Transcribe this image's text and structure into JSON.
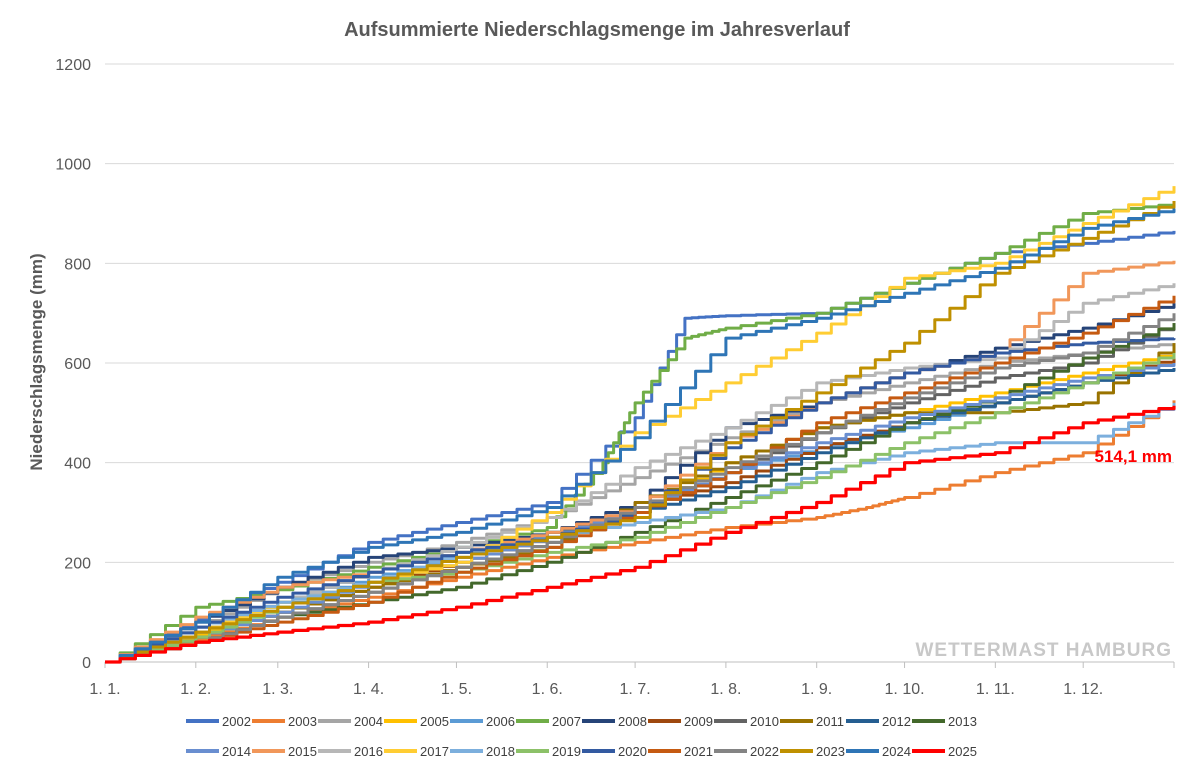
{
  "chart_data": {
    "type": "line",
    "title": "Aufsummierte Niederschlagsmenge im Jahresverlauf",
    "xlabel": "",
    "ylabel": "Niederschlagsmenge (mm)",
    "ylim": [
      0,
      1200
    ],
    "yticks": [
      0,
      200,
      400,
      600,
      800,
      1000,
      1200
    ],
    "x_tick_labels": [
      "1. 1.",
      "1. 2.",
      "1. 3.",
      "1. 4.",
      "1. 5.",
      "1. 6.",
      "1. 7.",
      "1. 8.",
      "1. 9.",
      "1. 10.",
      "1. 11.",
      "1. 12."
    ],
    "x_tick_days": [
      0,
      31,
      59,
      90,
      120,
      151,
      181,
      212,
      243,
      273,
      304,
      334
    ],
    "xlim": [
      0,
      365
    ],
    "grid": "horizontal",
    "legend": "bottom",
    "annotation": "514,1 mm",
    "watermark": "WETTERMAST HAMBURG",
    "series": [
      {
        "name": "2002",
        "color": "#4472c4",
        "x": [
          0,
          31,
          59,
          90,
          120,
          151,
          181,
          198,
          212,
          243,
          273,
          304,
          334,
          365
        ],
        "y": [
          0,
          85,
          160,
          240,
          280,
          320,
          490,
          690,
          695,
          700,
          760,
          820,
          840,
          865
        ]
      },
      {
        "name": "2003",
        "color": "#ed7d31",
        "x": [
          0,
          31,
          59,
          90,
          120,
          151,
          181,
          212,
          243,
          260,
          273,
          304,
          334,
          365
        ],
        "y": [
          0,
          45,
          90,
          130,
          170,
          210,
          240,
          270,
          290,
          310,
          330,
          380,
          420,
          525
        ]
      },
      {
        "name": "2004",
        "color": "#a5a5a5",
        "x": [
          0,
          31,
          59,
          90,
          120,
          151,
          181,
          212,
          243,
          273,
          304,
          334,
          365
        ],
        "y": [
          0,
          70,
          150,
          200,
          240,
          290,
          370,
          450,
          520,
          560,
          600,
          620,
          640
        ]
      },
      {
        "name": "2005",
        "color": "#ffc000",
        "x": [
          0,
          31,
          59,
          90,
          120,
          151,
          181,
          212,
          243,
          273,
          304,
          334,
          365
        ],
        "y": [
          0,
          55,
          110,
          160,
          210,
          260,
          300,
          400,
          470,
          500,
          540,
          580,
          620
        ]
      },
      {
        "name": "2006",
        "color": "#5b9bd5",
        "x": [
          0,
          31,
          59,
          90,
          120,
          151,
          181,
          212,
          243,
          273,
          304,
          334,
          365
        ],
        "y": [
          0,
          60,
          110,
          170,
          210,
          260,
          310,
          380,
          430,
          470,
          520,
          560,
          620
        ]
      },
      {
        "name": "2007",
        "color": "#70ad47",
        "x": [
          0,
          31,
          59,
          90,
          120,
          151,
          170,
          181,
          198,
          212,
          243,
          273,
          304,
          334,
          365
        ],
        "y": [
          0,
          110,
          145,
          190,
          230,
          270,
          400,
          520,
          650,
          670,
          700,
          760,
          820,
          900,
          920
        ]
      },
      {
        "name": "2008",
        "color": "#264478",
        "x": [
          0,
          31,
          59,
          90,
          120,
          151,
          181,
          212,
          243,
          273,
          304,
          334,
          365
        ],
        "y": [
          0,
          80,
          150,
          210,
          230,
          260,
          320,
          470,
          520,
          580,
          630,
          670,
          720
        ]
      },
      {
        "name": "2009",
        "color": "#9e480e",
        "x": [
          0,
          31,
          59,
          90,
          120,
          151,
          181,
          212,
          243,
          273,
          304,
          334,
          365
        ],
        "y": [
          0,
          50,
          100,
          150,
          200,
          250,
          310,
          360,
          430,
          480,
          520,
          560,
          610
        ]
      },
      {
        "name": "2010",
        "color": "#636363",
        "x": [
          0,
          31,
          59,
          90,
          120,
          151,
          181,
          212,
          243,
          273,
          304,
          334,
          365
        ],
        "y": [
          0,
          40,
          90,
          140,
          190,
          240,
          300,
          380,
          460,
          520,
          570,
          600,
          680
        ]
      },
      {
        "name": "2011",
        "color": "#997300",
        "x": [
          0,
          31,
          59,
          90,
          120,
          151,
          181,
          212,
          243,
          273,
          304,
          334,
          365
        ],
        "y": [
          0,
          50,
          100,
          150,
          190,
          230,
          320,
          400,
          470,
          500,
          500,
          520,
          640
        ]
      },
      {
        "name": "2012",
        "color": "#255e91",
        "x": [
          0,
          31,
          59,
          90,
          120,
          151,
          181,
          212,
          243,
          273,
          304,
          334,
          365
        ],
        "y": [
          0,
          60,
          120,
          180,
          220,
          260,
          300,
          350,
          420,
          480,
          520,
          560,
          590
        ]
      },
      {
        "name": "2013",
        "color": "#43682b",
        "x": [
          0,
          31,
          59,
          90,
          120,
          151,
          181,
          212,
          243,
          273,
          304,
          334,
          365
        ],
        "y": [
          0,
          40,
          90,
          120,
          150,
          200,
          260,
          330,
          400,
          480,
          530,
          610,
          680
        ]
      },
      {
        "name": "2014",
        "color": "#698ed0",
        "x": [
          0,
          31,
          59,
          90,
          120,
          151,
          181,
          212,
          243,
          273,
          304,
          334,
          365
        ],
        "y": [
          0,
          50,
          100,
          160,
          200,
          250,
          310,
          380,
          440,
          490,
          530,
          570,
          600
        ]
      },
      {
        "name": "2015",
        "color": "#f1975a",
        "x": [
          0,
          31,
          59,
          90,
          120,
          151,
          181,
          212,
          243,
          273,
          304,
          334,
          365
        ],
        "y": [
          0,
          90,
          150,
          180,
          220,
          260,
          310,
          440,
          520,
          580,
          620,
          780,
          805
        ]
      },
      {
        "name": "2016",
        "color": "#b7b7b7",
        "x": [
          0,
          31,
          59,
          90,
          120,
          151,
          181,
          212,
          243,
          273,
          304,
          334,
          365
        ],
        "y": [
          0,
          70,
          120,
          180,
          230,
          290,
          390,
          470,
          560,
          590,
          610,
          720,
          760
        ]
      },
      {
        "name": "2017",
        "color": "#ffcd33",
        "x": [
          0,
          31,
          59,
          90,
          120,
          151,
          181,
          212,
          243,
          273,
          304,
          334,
          365
        ],
        "y": [
          0,
          60,
          120,
          160,
          200,
          300,
          460,
          560,
          660,
          770,
          800,
          880,
          955
        ]
      },
      {
        "name": "2018",
        "color": "#7cafdd",
        "x": [
          0,
          31,
          59,
          90,
          120,
          151,
          181,
          212,
          243,
          273,
          304,
          334,
          365
        ],
        "y": [
          0,
          70,
          120,
          160,
          220,
          250,
          280,
          310,
          380,
          420,
          440,
          440,
          520
        ]
      },
      {
        "name": "2019",
        "color": "#8cc168",
        "x": [
          0,
          31,
          59,
          90,
          120,
          151,
          181,
          212,
          243,
          273,
          304,
          334,
          365
        ],
        "y": [
          0,
          50,
          110,
          160,
          180,
          220,
          250,
          310,
          370,
          440,
          500,
          560,
          620
        ]
      },
      {
        "name": "2020",
        "color": "#335aa1",
        "x": [
          0,
          31,
          59,
          90,
          120,
          151,
          181,
          212,
          243,
          273,
          304,
          334,
          365
        ],
        "y": [
          0,
          70,
          130,
          180,
          220,
          250,
          300,
          430,
          520,
          580,
          620,
          640,
          650
        ]
      },
      {
        "name": "2021",
        "color": "#c55a11",
        "x": [
          0,
          31,
          59,
          90,
          120,
          151,
          181,
          212,
          243,
          273,
          304,
          334,
          365
        ],
        "y": [
          0,
          40,
          80,
          120,
          180,
          230,
          300,
          380,
          480,
          540,
          600,
          660,
          735
        ]
      },
      {
        "name": "2022",
        "color": "#848484",
        "x": [
          0,
          31,
          59,
          90,
          120,
          151,
          181,
          212,
          243,
          273,
          304,
          334,
          365
        ],
        "y": [
          0,
          40,
          90,
          140,
          190,
          240,
          310,
          390,
          460,
          530,
          590,
          620,
          700
        ]
      },
      {
        "name": "2023",
        "color": "#bf9000",
        "x": [
          0,
          31,
          59,
          90,
          120,
          151,
          181,
          212,
          243,
          273,
          304,
          334,
          365
        ],
        "y": [
          0,
          60,
          110,
          160,
          210,
          250,
          290,
          440,
          540,
          640,
          780,
          850,
          925
        ]
      },
      {
        "name": "2024",
        "color": "#2e75b6",
        "x": [
          0,
          31,
          59,
          90,
          120,
          151,
          181,
          212,
          243,
          273,
          304,
          334,
          365
        ],
        "y": [
          0,
          80,
          170,
          230,
          260,
          310,
          450,
          650,
          690,
          740,
          790,
          870,
          910
        ]
      },
      {
        "name": "2025",
        "color": "#ff0000",
        "x": [
          0,
          31,
          59,
          90,
          120,
          151,
          181,
          212,
          243,
          273,
          304,
          334,
          365
        ],
        "y": [
          0,
          40,
          60,
          80,
          110,
          150,
          190,
          260,
          320,
          400,
          420,
          480,
          514.1
        ]
      }
    ]
  }
}
